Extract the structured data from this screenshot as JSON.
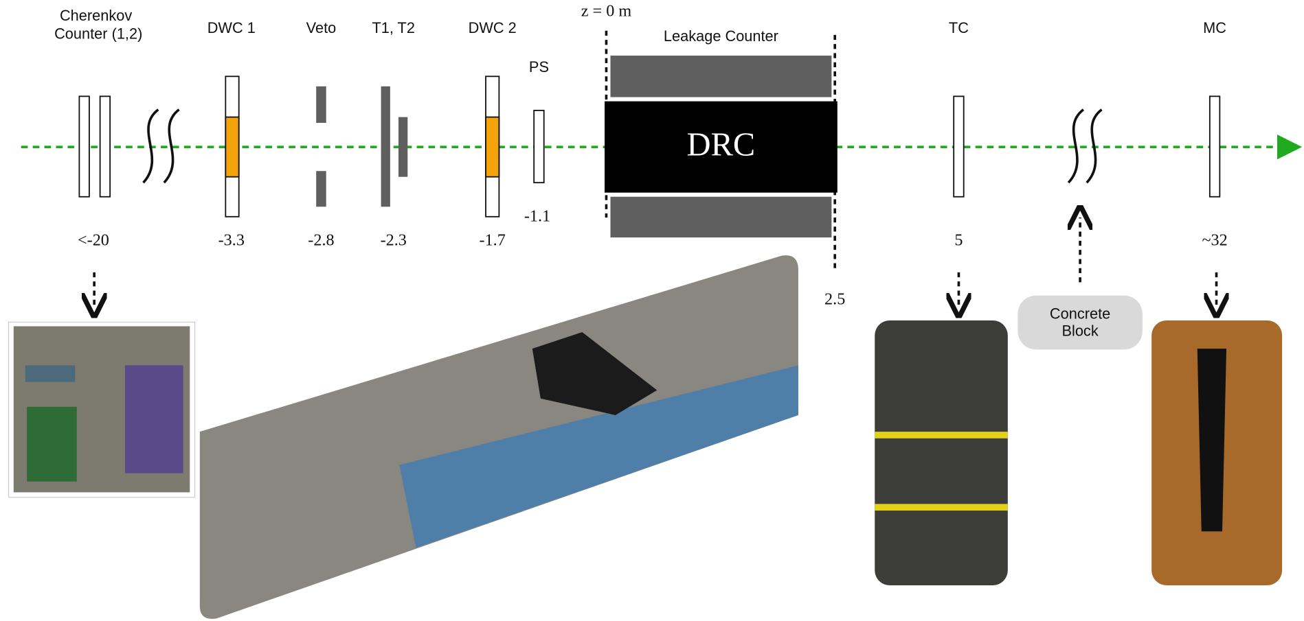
{
  "beamline": {
    "cherenkov": {
      "label": [
        "Cherenkov",
        "Counter (1,2)"
      ],
      "position": "<-20"
    },
    "dwc1": {
      "label": "DWC 1",
      "position": "-3.3"
    },
    "veto": {
      "label": "Veto",
      "position": "-2.8"
    },
    "t1t2": {
      "label": "T1, T2",
      "position": "-2.3"
    },
    "dwc2": {
      "label": "DWC 2",
      "position": "-1.7"
    },
    "ps": {
      "label": "PS",
      "position": "-1.1"
    },
    "origin": {
      "label": "z = 0 m"
    },
    "drc": {
      "label": "DRC"
    },
    "leakage": {
      "label": "Leakage Counter",
      "position": "2.5"
    },
    "tc": {
      "label": "TC",
      "position": "5"
    },
    "concrete": {
      "label": [
        "Concrete",
        "Block"
      ]
    },
    "mc": {
      "label": "MC",
      "position": "~32"
    }
  }
}
